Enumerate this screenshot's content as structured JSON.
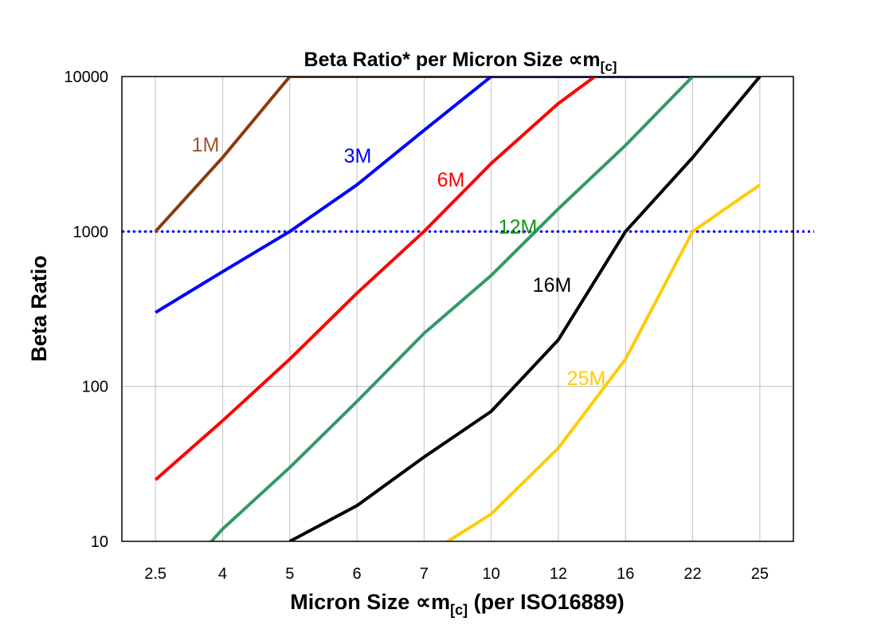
{
  "chart_data": {
    "type": "line",
    "title": "Beta Ratio* per Micron Size ∝m",
    "title_subscript": "[c]",
    "xlabel": "Micron Size ∝m",
    "xlabel_subscript": "[c]",
    "xlabel_suffix": " (per ISO16889)",
    "ylabel": "Beta Ratio",
    "yscale": "log",
    "ylim": [
      10,
      10000
    ],
    "yticks": [
      "10",
      "100",
      "1000",
      "10000"
    ],
    "categories": [
      "2.5",
      "4",
      "5",
      "6",
      "7",
      "10",
      "12",
      "16",
      "22",
      "25"
    ],
    "grid": true,
    "reference_line": {
      "value": 1000,
      "style": "dotted",
      "color": "#0000EE"
    },
    "series": [
      {
        "name": "1M",
        "color": "#8B3A0F",
        "label_color": "#A0522D",
        "values": [
          1000,
          3000,
          10000,
          10000,
          10000,
          10000,
          null,
          null,
          null,
          null
        ]
      },
      {
        "name": "3M",
        "color": "#0000FF",
        "label_color": "#0000FF",
        "values": [
          300,
          550,
          1000,
          2000,
          4500,
          10000,
          10000,
          10000,
          10000,
          null
        ]
      },
      {
        "name": "6M",
        "color": "#FF0000",
        "label_color": "#FF0000",
        "values": [
          25,
          60,
          150,
          400,
          1000,
          2750,
          6700,
          14000,
          null,
          null
        ]
      },
      {
        "name": "12M",
        "color": "#339966",
        "label_color": "#119911",
        "values": [
          4,
          12,
          30,
          80,
          220,
          520,
          1400,
          3600,
          10000,
          10000
        ]
      },
      {
        "name": "16M",
        "color": "#000000",
        "label_color": "#000000",
        "values": [
          null,
          null,
          10,
          17,
          35,
          69,
          200,
          1000,
          3000,
          10000
        ]
      },
      {
        "name": "25M",
        "color": "#FFCC00",
        "label_color": "#FFCC00",
        "values": [
          null,
          null,
          null,
          null,
          8,
          15,
          40,
          150,
          1000,
          2000
        ]
      }
    ]
  }
}
